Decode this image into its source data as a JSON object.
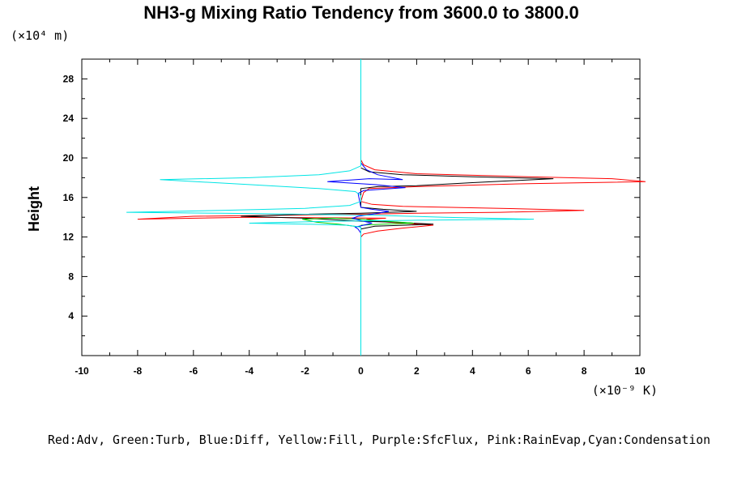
{
  "chart_data": {
    "type": "line",
    "title": "NH3-g Mixing Ratio Tendency from 3600.0 to 3800.0",
    "ylabel": "Height",
    "y_unit_label": "(×10⁴ m)",
    "x_unit_label": "(×10⁻⁹ K)",
    "xlim": [
      -10,
      10
    ],
    "ylim": [
      0,
      30
    ],
    "x_ticks": [
      "-10",
      "-8",
      "-6",
      "-4",
      "-2",
      "0",
      "2",
      "4",
      "6",
      "8",
      "10"
    ],
    "y_ticks": [
      "4",
      "8",
      "12",
      "16",
      "20",
      "24",
      "28"
    ],
    "legend_text": "Red:Adv, Green:Turb, Blue:Diff, Yellow:Fill, Purple:SfcFlux, Pink:RainEvap,Cyan:Condensation",
    "grid": false,
    "series": [
      {
        "color": "#ff0000",
        "points": [
          [
            0,
            0
          ],
          [
            0,
            12.0
          ],
          [
            0.1,
            12.3
          ],
          [
            0.6,
            12.6
          ],
          [
            1.5,
            12.9
          ],
          [
            2.6,
            13.2
          ],
          [
            1.5,
            13.4
          ],
          [
            0.5,
            13.6
          ],
          [
            0.2,
            13.8
          ],
          [
            0.9,
            13.9
          ],
          [
            -4,
            14.0
          ],
          [
            -8.0,
            13.8
          ],
          [
            -6,
            14.1
          ],
          [
            0,
            14.3
          ],
          [
            2,
            14.4
          ],
          [
            5,
            14.5
          ],
          [
            8.0,
            14.7
          ],
          [
            5,
            14.9
          ],
          [
            1.5,
            15.1
          ],
          [
            0.4,
            15.3
          ],
          [
            0,
            15.6
          ],
          [
            0.1,
            16.5
          ],
          [
            0.3,
            16.9
          ],
          [
            2,
            17.1
          ],
          [
            6,
            17.4
          ],
          [
            10.2,
            17.6
          ],
          [
            9,
            17.9
          ],
          [
            6,
            18.1
          ],
          [
            2,
            18.4
          ],
          [
            0.5,
            18.8
          ],
          [
            0.1,
            19.3
          ],
          [
            0,
            19.8
          ],
          [
            0,
            30
          ]
        ]
      },
      {
        "color": "#000000",
        "points": [
          [
            0,
            12.8
          ],
          [
            0.5,
            13.1
          ],
          [
            1.6,
            13.2
          ],
          [
            2.6,
            13.3
          ],
          [
            1.2,
            13.5
          ],
          [
            0,
            13.6
          ],
          [
            -2,
            13.9
          ],
          [
            -4.3,
            14.1
          ],
          [
            -2,
            14.3
          ],
          [
            0,
            14.4
          ],
          [
            1,
            14.5
          ],
          [
            2.0,
            14.6
          ],
          [
            0.8,
            14.8
          ],
          [
            0,
            15.0
          ],
          [
            0,
            16.9
          ],
          [
            0.6,
            17.1
          ],
          [
            2,
            17.2
          ],
          [
            4,
            17.5
          ],
          [
            6.9,
            17.9
          ],
          [
            4,
            18.1
          ],
          [
            1.5,
            18.3
          ],
          [
            0.3,
            18.6
          ],
          [
            0,
            19.0
          ]
        ]
      },
      {
        "color": "#00cc00",
        "points": [
          [
            0,
            13.0
          ],
          [
            -0.8,
            13.3
          ],
          [
            -1.6,
            13.5
          ],
          [
            -2.1,
            13.8
          ],
          [
            -1.0,
            13.9
          ],
          [
            0,
            13.8
          ],
          [
            0.9,
            13.6
          ],
          [
            1.9,
            13.4
          ],
          [
            0.8,
            13.3
          ],
          [
            0,
            13.2
          ]
        ]
      },
      {
        "color": "#0000ff",
        "points": [
          [
            0,
            12.4
          ],
          [
            -0.1,
            12.8
          ],
          [
            -0.2,
            13.0
          ],
          [
            0.1,
            13.2
          ],
          [
            0.4,
            13.4
          ],
          [
            0.1,
            13.6
          ],
          [
            -0.3,
            13.9
          ],
          [
            -0.1,
            14.1
          ],
          [
            0.4,
            14.3
          ],
          [
            1.0,
            14.6
          ],
          [
            0.4,
            14.8
          ],
          [
            0,
            15.0
          ],
          [
            -0.1,
            16.4
          ],
          [
            0.1,
            16.7
          ],
          [
            0.6,
            16.8
          ],
          [
            1.6,
            17.0
          ],
          [
            0.5,
            17.3
          ],
          [
            -1.2,
            17.6
          ],
          [
            0.3,
            17.9
          ],
          [
            1.5,
            17.8
          ],
          [
            0.6,
            18.3
          ],
          [
            0.2,
            18.8
          ],
          [
            0,
            19.5
          ]
        ]
      },
      {
        "color": "#00e5e5",
        "points": [
          [
            0,
            0
          ],
          [
            0,
            13.0
          ],
          [
            -0.5,
            13.2
          ],
          [
            -2,
            13.3
          ],
          [
            -4,
            13.4
          ],
          [
            -1,
            13.6
          ],
          [
            2,
            13.7
          ],
          [
            6.2,
            13.8
          ],
          [
            3,
            14.0
          ],
          [
            0.5,
            14.2
          ],
          [
            -2,
            14.3
          ],
          [
            -5,
            14.4
          ],
          [
            -8.4,
            14.5
          ],
          [
            -5,
            14.7
          ],
          [
            -2,
            14.9
          ],
          [
            -0.4,
            15.2
          ],
          [
            0,
            15.6
          ],
          [
            0,
            16.2
          ],
          [
            -0.2,
            16.6
          ],
          [
            -1.5,
            16.9
          ],
          [
            -4,
            17.3
          ],
          [
            -7.2,
            17.8
          ],
          [
            -4,
            18.0
          ],
          [
            -1.5,
            18.3
          ],
          [
            -0.4,
            18.7
          ],
          [
            0,
            19.2
          ],
          [
            0,
            30
          ]
        ]
      }
    ]
  }
}
